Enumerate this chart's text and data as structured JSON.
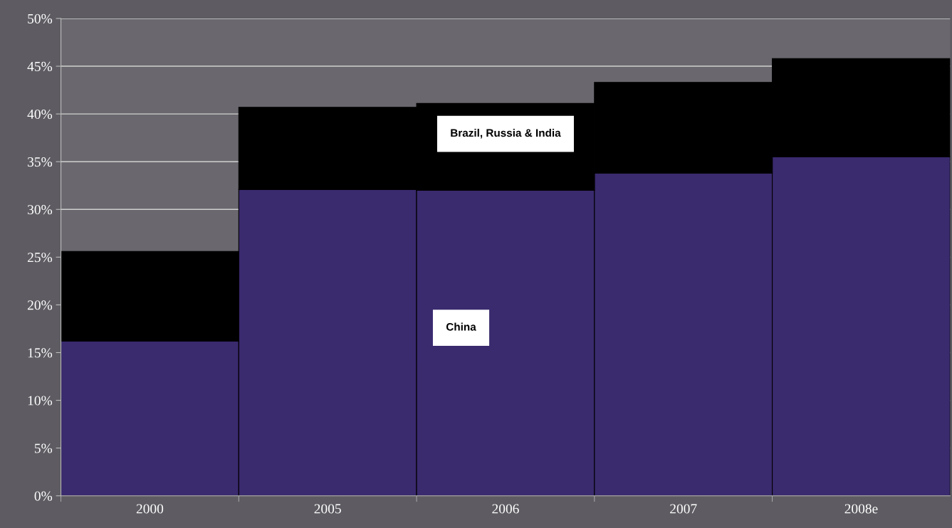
{
  "chart_data": {
    "type": "bar",
    "stacked": true,
    "categories": [
      "2000",
      "2005",
      "2006",
      "2007",
      "2008e"
    ],
    "series": [
      {
        "name": "China",
        "color": "#3a2a6e",
        "values": [
          16.2,
          32.1,
          32.0,
          33.8,
          35.5
        ]
      },
      {
        "name": "Brazil, Russia & India",
        "color": "#000000",
        "values": [
          9.4,
          8.6,
          9.1,
          9.5,
          10.3
        ]
      }
    ],
    "ylim": [
      0,
      50
    ],
    "yticks": [
      {
        "value": 0,
        "label": "0%"
      },
      {
        "value": 5,
        "label": "5%"
      },
      {
        "value": 10,
        "label": "10%"
      },
      {
        "value": 15,
        "label": "15%"
      },
      {
        "value": 20,
        "label": "20%"
      },
      {
        "value": 25,
        "label": "25%"
      },
      {
        "value": 30,
        "label": "30%"
      },
      {
        "value": 35,
        "label": "35%"
      },
      {
        "value": 40,
        "label": "40%"
      },
      {
        "value": 45,
        "label": "45%"
      },
      {
        "value": 50,
        "label": "50%"
      }
    ],
    "grid": "y"
  }
}
